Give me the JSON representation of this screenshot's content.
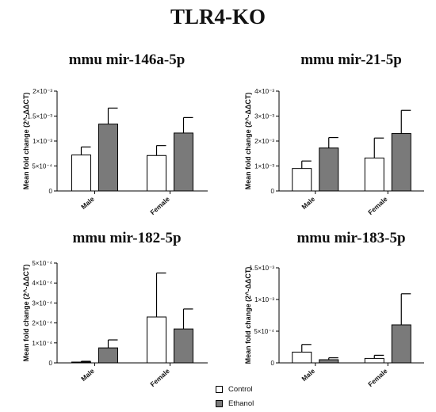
{
  "figure_title": "TLR4-KO",
  "legend": [
    {
      "label": "Control",
      "color": "#ffffff"
    },
    {
      "label": "Ethanol",
      "color": "#7a7a7a"
    }
  ],
  "chart_data": [
    {
      "type": "bar",
      "title": "mmu mir-146a-5p",
      "ylabel": "Mean fold change (2^-ΔΔCT)",
      "categories": [
        "Male",
        "Female"
      ],
      "ylim": [
        0,
        0.002
      ],
      "yticks": [
        0,
        0.0005,
        0.001,
        0.0015,
        0.002
      ],
      "ytick_labels": [
        "0",
        "5×10⁻⁴",
        "1×10⁻³",
        "1.5×10⁻³",
        "2×10⁻³"
      ],
      "series": [
        {
          "name": "Control",
          "values": [
            0.00072,
            0.00071
          ],
          "errors": [
            0.00016,
            0.0002
          ]
        },
        {
          "name": "Ethanol",
          "values": [
            0.00134,
            0.00116
          ],
          "errors": [
            0.00032,
            0.00031
          ]
        }
      ]
    },
    {
      "type": "bar",
      "title": "mmu mir-21-5p",
      "ylabel": "Mean fold change (2^-ΔΔCT)",
      "categories": [
        "Male",
        "Female"
      ],
      "ylim": [
        0,
        0.004
      ],
      "yticks": [
        0,
        0.001,
        0.002,
        0.003,
        0.004
      ],
      "ytick_labels": [
        "0",
        "1×10⁻³",
        "2×10⁻³",
        "3×10⁻³",
        "4×10⁻³"
      ],
      "series": [
        {
          "name": "Control",
          "values": [
            0.0009,
            0.00132
          ],
          "errors": [
            0.0003,
            0.0008
          ]
        },
        {
          "name": "Ethanol",
          "values": [
            0.00172,
            0.0023
          ],
          "errors": [
            0.00042,
            0.00093
          ]
        }
      ]
    },
    {
      "type": "bar",
      "title": "mmu mir-182-5p",
      "ylabel": "Mean fold change (2^-ΔΔCT)",
      "categories": [
        "Male",
        "Female"
      ],
      "ylim": [
        0,
        0.0005
      ],
      "yticks": [
        0,
        0.0001,
        0.0002,
        0.0003,
        0.0004,
        0.0005
      ],
      "ytick_labels": [
        "0",
        "1×10⁻⁴",
        "2×10⁻⁴",
        "3×10⁻⁴",
        "4×10⁻⁴",
        "5×10⁻⁴"
      ],
      "series": [
        {
          "name": "Control",
          "values": [
            4e-06,
            0.00023
          ],
          "errors": [
            4e-06,
            0.00022
          ]
        },
        {
          "name": "Ethanol",
          "values": [
            7.5e-05,
            0.00017
          ],
          "errors": [
            4e-05,
            0.0001
          ]
        }
      ]
    },
    {
      "type": "bar",
      "title": "mmu mir-183-5p",
      "ylabel": "Mean fold change (2^-ΔΔCT)",
      "categories": [
        "Male",
        "Female"
      ],
      "ylim": [
        0,
        0.0015
      ],
      "yticks": [
        0,
        0.0005,
        0.001,
        0.0015
      ],
      "ytick_labels": [
        "0",
        "5×10⁻⁴",
        "1×10⁻³",
        "1.5×10⁻³"
      ],
      "series": [
        {
          "name": "Control",
          "values": [
            0.00017,
            7e-05
          ],
          "errors": [
            0.00012,
            5e-05
          ]
        },
        {
          "name": "Ethanol",
          "values": [
            5e-05,
            0.0006
          ],
          "errors": [
            3e-05,
            0.00049
          ]
        }
      ]
    }
  ]
}
